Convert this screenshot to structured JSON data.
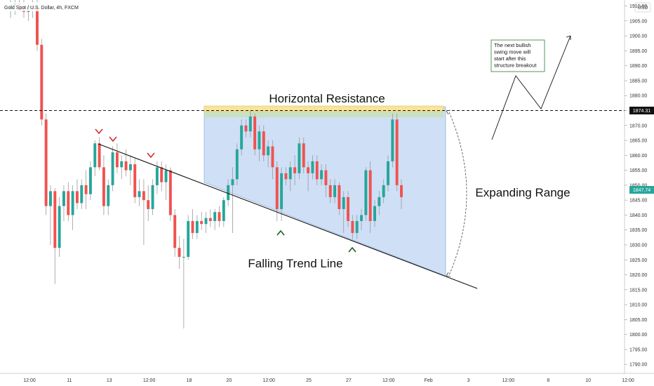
{
  "header": {
    "title": "Gold Spot / U.S. Dollar, 4h, FXCM",
    "currency_label": "USD"
  },
  "chart_data": {
    "type": "candlestick",
    "symbol": "Gold Spot / U.S. Dollar",
    "timeframe": "4h",
    "broker": "FXCM",
    "price_axis": {
      "range": [
        1787,
        1912
      ],
      "ticks": [
        1790,
        1795,
        1800,
        1805,
        1810,
        1815,
        1820,
        1825,
        1830,
        1835,
        1840,
        1845,
        1850,
        1855,
        1860,
        1865,
        1870,
        1875,
        1880,
        1885,
        1890,
        1895,
        1900,
        1905,
        1910
      ],
      "tick_labels": [
        "1790.00",
        "1795.00",
        "1800.00",
        "1805.00",
        "1810.00",
        "1815.00",
        "1820.00",
        "1825.00",
        "1830.00",
        "1835.00",
        "1840.00",
        "1845.00",
        "1850.00",
        "1855.00",
        "1860.00",
        "1865.00",
        "1870.00",
        "1875.00",
        "1880.00",
        "1885.00",
        "1890.00",
        "1895.00",
        "1900.00",
        "1905.00",
        "1910.00"
      ]
    },
    "time_axis": {
      "tick_labels": [
        "12:00",
        "11",
        "13",
        "12:00",
        "18",
        "20",
        "12:00",
        "25",
        "27",
        "12:00",
        "Feb",
        "3",
        "12:00",
        "8",
        "10",
        "12:00"
      ]
    },
    "resistance_price": 1874.31,
    "resistance_label": "1874.31",
    "last_price": 1847.74,
    "last_price_label": "1847.74",
    "candles": [
      {
        "o": 1909,
        "h": 1912,
        "l": 1906,
        "c": 1910
      },
      {
        "o": 1910,
        "h": 1912,
        "l": 1907,
        "c": 1911
      },
      {
        "o": 1911,
        "h": 1912,
        "l": 1909,
        "c": 1910
      },
      {
        "o": 1910,
        "h": 1912,
        "l": 1906,
        "c": 1908
      },
      {
        "o": 1908,
        "h": 1911,
        "l": 1905,
        "c": 1910
      },
      {
        "o": 1910,
        "h": 1912,
        "l": 1906,
        "c": 1909
      },
      {
        "o": 1909,
        "h": 1912,
        "l": 1895,
        "c": 1897
      },
      {
        "o": 1897,
        "h": 1899,
        "l": 1870,
        "c": 1872
      },
      {
        "o": 1872,
        "h": 1874,
        "l": 1840,
        "c": 1843
      },
      {
        "o": 1843,
        "h": 1850,
        "l": 1830,
        "c": 1848
      },
      {
        "o": 1848,
        "h": 1849,
        "l": 1817,
        "c": 1829
      },
      {
        "o": 1829,
        "h": 1846,
        "l": 1826,
        "c": 1843
      },
      {
        "o": 1843,
        "h": 1850,
        "l": 1838,
        "c": 1848
      },
      {
        "o": 1848,
        "h": 1851,
        "l": 1838,
        "c": 1840
      },
      {
        "o": 1840,
        "h": 1850,
        "l": 1835,
        "c": 1848
      },
      {
        "o": 1848,
        "h": 1852,
        "l": 1842,
        "c": 1844
      },
      {
        "o": 1844,
        "h": 1852,
        "l": 1842,
        "c": 1850
      },
      {
        "o": 1850,
        "h": 1855,
        "l": 1842,
        "c": 1847
      },
      {
        "o": 1847,
        "h": 1858,
        "l": 1845,
        "c": 1856
      },
      {
        "o": 1856,
        "h": 1865,
        "l": 1853,
        "c": 1864
      },
      {
        "o": 1864,
        "h": 1866,
        "l": 1855,
        "c": 1856
      },
      {
        "o": 1856,
        "h": 1860,
        "l": 1840,
        "c": 1843
      },
      {
        "o": 1843,
        "h": 1852,
        "l": 1840,
        "c": 1850
      },
      {
        "o": 1850,
        "h": 1863,
        "l": 1848,
        "c": 1861
      },
      {
        "o": 1861,
        "h": 1864,
        "l": 1854,
        "c": 1856
      },
      {
        "o": 1856,
        "h": 1860,
        "l": 1852,
        "c": 1858
      },
      {
        "o": 1858,
        "h": 1862,
        "l": 1853,
        "c": 1855
      },
      {
        "o": 1855,
        "h": 1860,
        "l": 1850,
        "c": 1857
      },
      {
        "o": 1857,
        "h": 1859,
        "l": 1844,
        "c": 1846
      },
      {
        "o": 1846,
        "h": 1852,
        "l": 1843,
        "c": 1848
      },
      {
        "o": 1848,
        "h": 1852,
        "l": 1830,
        "c": 1845
      },
      {
        "o": 1845,
        "h": 1850,
        "l": 1838,
        "c": 1842
      },
      {
        "o": 1842,
        "h": 1852,
        "l": 1840,
        "c": 1850
      },
      {
        "o": 1850,
        "h": 1858,
        "l": 1847,
        "c": 1856
      },
      {
        "o": 1856,
        "h": 1858,
        "l": 1848,
        "c": 1851
      },
      {
        "o": 1851,
        "h": 1857,
        "l": 1845,
        "c": 1855
      },
      {
        "o": 1855,
        "h": 1856,
        "l": 1838,
        "c": 1840
      },
      {
        "o": 1840,
        "h": 1842,
        "l": 1826,
        "c": 1829
      },
      {
        "o": 1829,
        "h": 1833,
        "l": 1822,
        "c": 1826
      },
      {
        "o": 1826,
        "h": 1832,
        "l": 1802,
        "c": 1826
      },
      {
        "o": 1826,
        "h": 1840,
        "l": 1825,
        "c": 1838
      },
      {
        "o": 1838,
        "h": 1842,
        "l": 1832,
        "c": 1834
      },
      {
        "o": 1834,
        "h": 1840,
        "l": 1832,
        "c": 1838
      },
      {
        "o": 1838,
        "h": 1841,
        "l": 1835,
        "c": 1837
      },
      {
        "o": 1837,
        "h": 1841,
        "l": 1834,
        "c": 1839
      },
      {
        "o": 1839,
        "h": 1842,
        "l": 1836,
        "c": 1838
      },
      {
        "o": 1838,
        "h": 1842,
        "l": 1835,
        "c": 1841
      },
      {
        "o": 1841,
        "h": 1843,
        "l": 1836,
        "c": 1838
      },
      {
        "o": 1838,
        "h": 1846,
        "l": 1836,
        "c": 1845
      },
      {
        "o": 1845,
        "h": 1852,
        "l": 1843,
        "c": 1850
      },
      {
        "o": 1850,
        "h": 1856,
        "l": 1834,
        "c": 1852
      },
      {
        "o": 1852,
        "h": 1864,
        "l": 1850,
        "c": 1862
      },
      {
        "o": 1862,
        "h": 1872,
        "l": 1860,
        "c": 1870
      },
      {
        "o": 1870,
        "h": 1872,
        "l": 1866,
        "c": 1868
      },
      {
        "o": 1868,
        "h": 1875,
        "l": 1866,
        "c": 1873
      },
      {
        "o": 1873,
        "h": 1874,
        "l": 1860,
        "c": 1862
      },
      {
        "o": 1862,
        "h": 1870,
        "l": 1858,
        "c": 1868
      },
      {
        "o": 1868,
        "h": 1870,
        "l": 1858,
        "c": 1860
      },
      {
        "o": 1860,
        "h": 1865,
        "l": 1856,
        "c": 1863
      },
      {
        "o": 1863,
        "h": 1865,
        "l": 1852,
        "c": 1856
      },
      {
        "o": 1856,
        "h": 1858,
        "l": 1838,
        "c": 1842
      },
      {
        "o": 1842,
        "h": 1856,
        "l": 1838,
        "c": 1854
      },
      {
        "o": 1854,
        "h": 1856,
        "l": 1850,
        "c": 1852
      },
      {
        "o": 1852,
        "h": 1858,
        "l": 1848,
        "c": 1856
      },
      {
        "o": 1856,
        "h": 1860,
        "l": 1850,
        "c": 1854
      },
      {
        "o": 1854,
        "h": 1866,
        "l": 1852,
        "c": 1864
      },
      {
        "o": 1864,
        "h": 1866,
        "l": 1854,
        "c": 1856
      },
      {
        "o": 1856,
        "h": 1858,
        "l": 1848,
        "c": 1854
      },
      {
        "o": 1854,
        "h": 1860,
        "l": 1852,
        "c": 1858
      },
      {
        "o": 1858,
        "h": 1860,
        "l": 1850,
        "c": 1852
      },
      {
        "o": 1852,
        "h": 1857,
        "l": 1850,
        "c": 1855
      },
      {
        "o": 1855,
        "h": 1857,
        "l": 1846,
        "c": 1850
      },
      {
        "o": 1850,
        "h": 1852,
        "l": 1844,
        "c": 1846
      },
      {
        "o": 1846,
        "h": 1852,
        "l": 1844,
        "c": 1850
      },
      {
        "o": 1850,
        "h": 1851,
        "l": 1840,
        "c": 1842
      },
      {
        "o": 1842,
        "h": 1848,
        "l": 1834,
        "c": 1846
      },
      {
        "o": 1846,
        "h": 1848,
        "l": 1836,
        "c": 1838
      },
      {
        "o": 1838,
        "h": 1840,
        "l": 1832,
        "c": 1834
      },
      {
        "o": 1834,
        "h": 1840,
        "l": 1832,
        "c": 1838
      },
      {
        "o": 1838,
        "h": 1842,
        "l": 1835,
        "c": 1840
      },
      {
        "o": 1840,
        "h": 1856,
        "l": 1838,
        "c": 1855
      },
      {
        "o": 1855,
        "h": 1858,
        "l": 1834,
        "c": 1838
      },
      {
        "o": 1838,
        "h": 1845,
        "l": 1836,
        "c": 1843
      },
      {
        "o": 1843,
        "h": 1848,
        "l": 1840,
        "c": 1846
      },
      {
        "o": 1846,
        "h": 1852,
        "l": 1844,
        "c": 1850
      },
      {
        "o": 1850,
        "h": 1860,
        "l": 1848,
        "c": 1858
      },
      {
        "o": 1858,
        "h": 1874,
        "l": 1856,
        "c": 1872
      },
      {
        "o": 1872,
        "h": 1874,
        "l": 1848,
        "c": 1850
      },
      {
        "o": 1850,
        "h": 1852,
        "l": 1842,
        "c": 1846
      }
    ],
    "annotations": {
      "horizontal_resistance": "Horizontal Resistance",
      "falling_trend_line": "Falling Trend Line",
      "expanding_range": "Expanding Range",
      "note_lines": [
        "The next bullish",
        "swing move will",
        "start after this",
        "structure breakout"
      ]
    },
    "colors": {
      "up": "#26a69a",
      "down": "#ef5350",
      "range_fill": "#c6d9f5",
      "resistance_fill": "#ffe58f",
      "note_border": "#2e7d32"
    }
  }
}
